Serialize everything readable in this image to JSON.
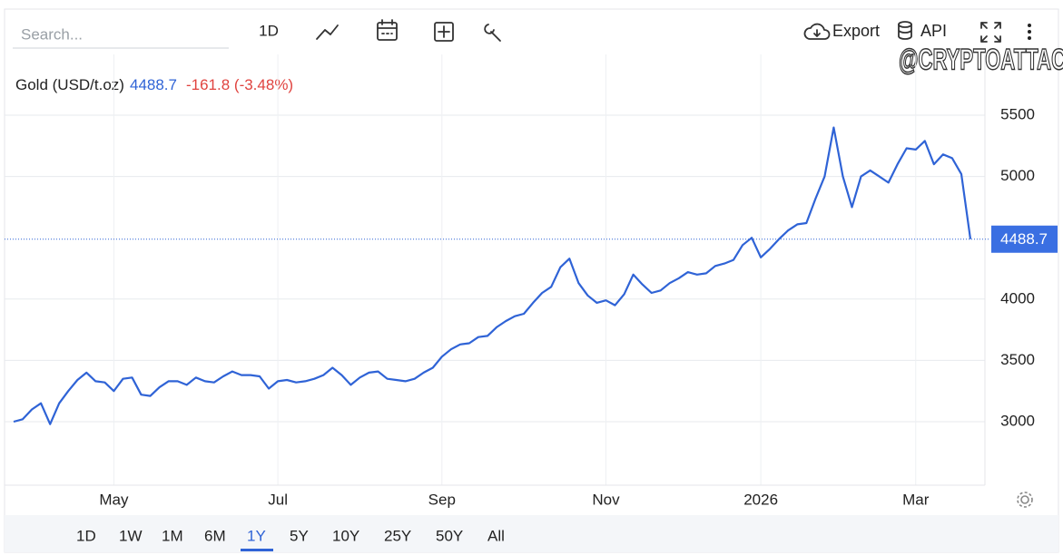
{
  "toolbar": {
    "search_placeholder": "Search...",
    "interval": "1D",
    "export": "Export",
    "api": "API"
  },
  "watermark": "@CRYPTOATTACK",
  "chart_data": {
    "type": "line",
    "series": [
      {
        "name": "Gold (USD/t.oz)",
        "color": "#2f63d6",
        "values": [
          3000,
          3020,
          3100,
          3150,
          2980,
          3150,
          3250,
          3340,
          3400,
          3330,
          3320,
          3250,
          3350,
          3360,
          3220,
          3210,
          3280,
          3330,
          3330,
          3300,
          3360,
          3330,
          3320,
          3370,
          3410,
          3380,
          3380,
          3370,
          3270,
          3330,
          3340,
          3320,
          3330,
          3350,
          3380,
          3440,
          3380,
          3300,
          3360,
          3400,
          3410,
          3350,
          3340,
          3330,
          3350,
          3400,
          3440,
          3530,
          3590,
          3630,
          3640,
          3690,
          3700,
          3770,
          3820,
          3860,
          3880,
          3970,
          4050,
          4100,
          4260,
          4330,
          4130,
          4030,
          3970,
          3990,
          3950,
          4040,
          4200,
          4120,
          4050,
          4070,
          4130,
          4170,
          4220,
          4200,
          4210,
          4270,
          4290,
          4320,
          4440,
          4500,
          4340,
          4410,
          4490,
          4560,
          4610,
          4620,
          4820,
          5000,
          5400,
          5000,
          4750,
          5000,
          5050,
          5000,
          4950,
          5100,
          5230,
          5220,
          5290,
          5100,
          5180,
          5150,
          5020,
          4488.7
        ]
      }
    ],
    "change_label": "-161.8 (-3.48%)",
    "categories": [
      null,
      null,
      null,
      null,
      null,
      null,
      null,
      null,
      null,
      null,
      null,
      "May",
      null,
      null,
      null,
      null,
      null,
      null,
      null,
      null,
      null,
      null,
      null,
      null,
      null,
      null,
      null,
      null,
      null,
      "Jul",
      null,
      null,
      null,
      null,
      null,
      null,
      null,
      null,
      null,
      null,
      null,
      null,
      null,
      null,
      null,
      null,
      null,
      "Sep",
      null,
      null,
      null,
      null,
      null,
      null,
      null,
      null,
      null,
      null,
      null,
      null,
      null,
      null,
      null,
      null,
      null,
      "Nov",
      null,
      null,
      null,
      null,
      null,
      null,
      null,
      null,
      null,
      null,
      null,
      null,
      null,
      null,
      null,
      null,
      "2026",
      null,
      null,
      null,
      null,
      null,
      null,
      null,
      null,
      null,
      null,
      null,
      null,
      null,
      null,
      null,
      null,
      "Mar",
      null,
      null,
      null,
      null,
      null,
      null
    ],
    "ylim": [
      2482,
      5996
    ],
    "yticks": [
      3000,
      3500,
      4000,
      5000,
      5500
    ],
    "grid": true
  },
  "range_buttons": {
    "items": [
      "1D",
      "1W",
      "1M",
      "6M",
      "1Y",
      "5Y",
      "10Y",
      "25Y",
      "50Y",
      "All"
    ],
    "selected": "1Y"
  }
}
